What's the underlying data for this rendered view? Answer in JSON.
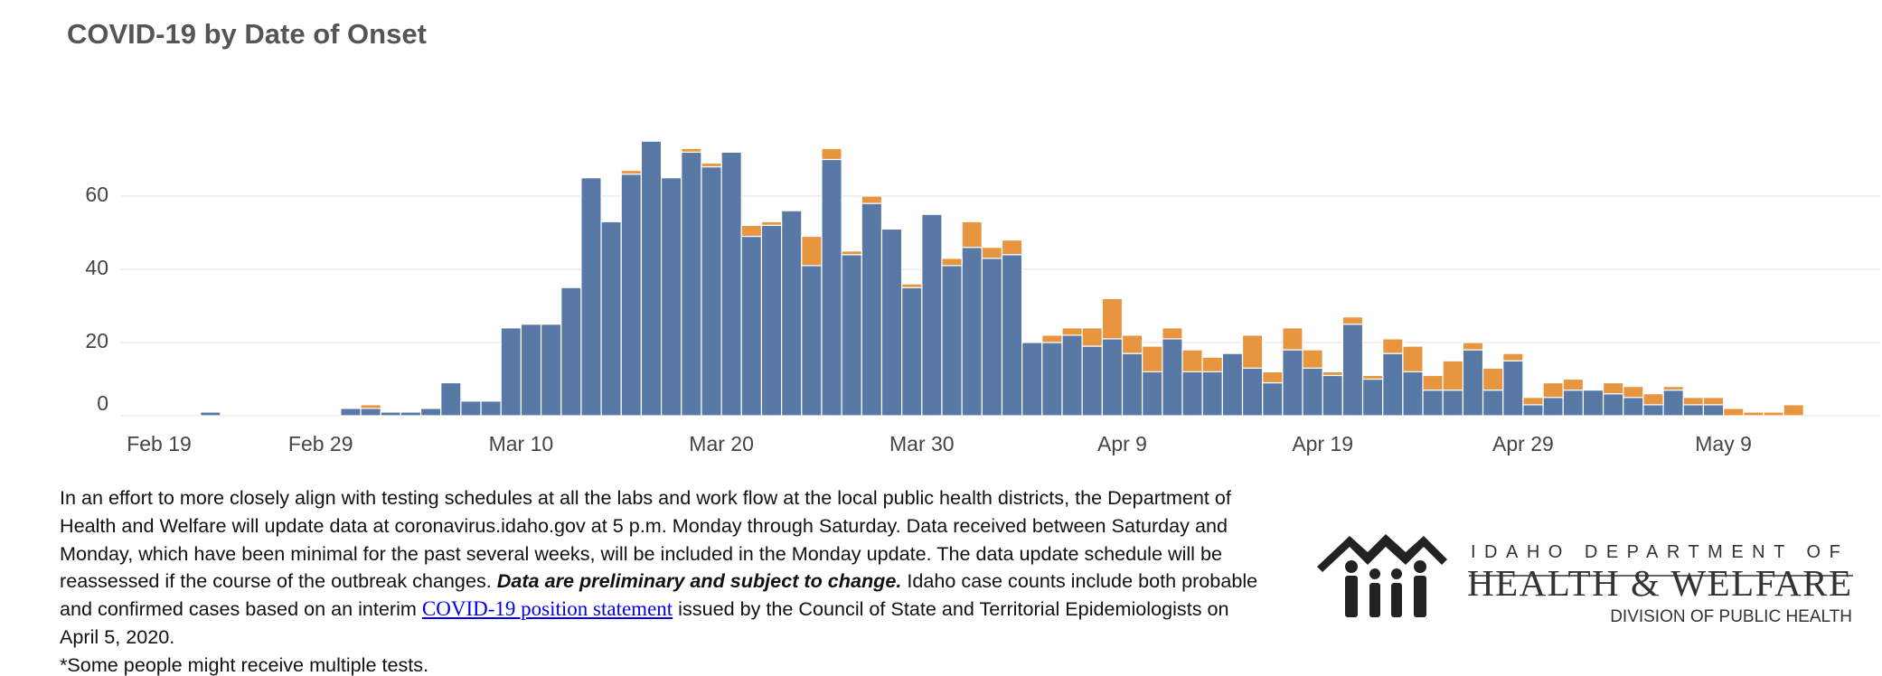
{
  "chart_data": {
    "type": "bar",
    "stacked": true,
    "title": "COVID-19 by Date of Onset",
    "x": [
      "Feb 19",
      "Feb 20",
      "Feb 21",
      "Feb 22",
      "Feb 23",
      "Feb 24",
      "Feb 25",
      "Feb 26",
      "Feb 27",
      "Feb 28",
      "Feb 29",
      "Mar 1",
      "Mar 2",
      "Mar 3",
      "Mar 4",
      "Mar 5",
      "Mar 6",
      "Mar 7",
      "Mar 8",
      "Mar 9",
      "Mar 10",
      "Mar 11",
      "Mar 12",
      "Mar 13",
      "Mar 14",
      "Mar 15",
      "Mar 16",
      "Mar 17",
      "Mar 18",
      "Mar 19",
      "Mar 20",
      "Mar 21",
      "Mar 22",
      "Mar 23",
      "Mar 24",
      "Mar 25",
      "Mar 26",
      "Mar 27",
      "Mar 28",
      "Mar 29",
      "Mar 30",
      "Mar 31",
      "Apr 1",
      "Apr 2",
      "Apr 3",
      "Apr 4",
      "Apr 5",
      "Apr 6",
      "Apr 7",
      "Apr 8",
      "Apr 9",
      "Apr 10",
      "Apr 11",
      "Apr 12",
      "Apr 13",
      "Apr 14",
      "Apr 15",
      "Apr 16",
      "Apr 17",
      "Apr 18",
      "Apr 19",
      "Apr 20",
      "Apr 21",
      "Apr 22",
      "Apr 23",
      "Apr 24",
      "Apr 25",
      "Apr 26",
      "Apr 27",
      "Apr 28",
      "Apr 29",
      "Apr 30",
      "May 1",
      "May 2",
      "May 3",
      "May 4",
      "May 5",
      "May 6",
      "May 7",
      "May 8",
      "May 9",
      "May 10",
      "May 11",
      "May 12"
    ],
    "series": [
      {
        "color": "#5878a6",
        "values": [
          0,
          0,
          0,
          0,
          1,
          0,
          0,
          0,
          0,
          0,
          0,
          2,
          2,
          1,
          1,
          2,
          9,
          4,
          4,
          24,
          25,
          25,
          35,
          65,
          53,
          66,
          75,
          65,
          72,
          68,
          72,
          49,
          52,
          56,
          41,
          70,
          44,
          58,
          51,
          35,
          55,
          41,
          46,
          43,
          44,
          20,
          20,
          22,
          19,
          21,
          17,
          12,
          21,
          12,
          12,
          17,
          13,
          9,
          18,
          13,
          11,
          25,
          10,
          17,
          12,
          7,
          7,
          18,
          7,
          15,
          3,
          5,
          7,
          7,
          6,
          5,
          3,
          7,
          3,
          3,
          0,
          0,
          0,
          0
        ]
      },
      {
        "color": "#e8953f",
        "values": [
          0,
          0,
          0,
          0,
          0,
          0,
          0,
          0,
          0,
          0,
          0,
          0,
          1,
          0,
          0,
          0,
          0,
          0,
          0,
          0,
          0,
          0,
          0,
          0,
          0,
          1,
          0,
          0,
          1,
          1,
          0,
          3,
          1,
          0,
          8,
          3,
          1,
          2,
          0,
          1,
          0,
          2,
          7,
          3,
          4,
          0,
          2,
          2,
          5,
          11,
          5,
          7,
          3,
          6,
          4,
          0,
          9,
          3,
          6,
          5,
          1,
          2,
          1,
          4,
          7,
          4,
          8,
          2,
          6,
          2,
          2,
          4,
          3,
          0,
          3,
          3,
          3,
          1,
          2,
          2,
          2,
          1,
          1,
          3
        ]
      }
    ],
    "ylim": [
      0,
      79
    ],
    "yticks": [
      0,
      20,
      40,
      60
    ],
    "xticks": [
      "Feb 19",
      "Feb 29",
      "Mar 10",
      "Mar 20",
      "Mar 30",
      "Apr 9",
      "Apr 19",
      "Apr 29",
      "May 9"
    ],
    "grid": true
  },
  "notice": {
    "text_1": "In an effort to more closely align with testing schedules at all the labs and work flow at the local public health districts, the Department of Health and Welfare will update data at coronavirus.idaho.gov at 5 p.m. Monday through Saturday. Data received between Saturday and Monday, which have been minimal for the past several weeks, will be included in the Monday update. The data update schedule will be reassessed if the course of the outbreak changes.",
    "emphasis": "Data are preliminary and subject to change.",
    "text_2": "Idaho case counts include both probable and confirmed cases based on an interim",
    "link": "COVID-19 position statement",
    "text_3": "issued by the Council of State and Territorial Epidemiologists on April 5, 2020.",
    "footnote": "*Some people might receive multiple tests."
  },
  "logo": {
    "line_1": "IDAHO DEPARTMENT OF",
    "line_2": "HEALTH & WELFARE",
    "line_3": "DIVISION OF PUBLIC HEALTH"
  }
}
